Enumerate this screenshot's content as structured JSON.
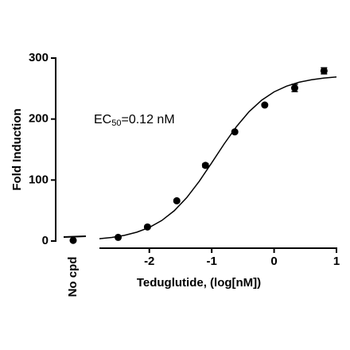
{
  "chart_data": {
    "type": "scatter",
    "ylabel": "Fold Induction",
    "xlabel": "Teduglutide, (log[nM])",
    "annotation": {
      "text": "EC",
      "subscript": "50",
      "rest": "=0.12 nM"
    },
    "ylim": [
      0,
      300
    ],
    "yticks": [
      0,
      100,
      200,
      300
    ],
    "xlim": [
      -2.8,
      1
    ],
    "xticks": [
      -2,
      -1,
      0,
      1
    ],
    "color": "#000000",
    "control": {
      "categories": [
        "No cpd"
      ],
      "values": [
        1
      ]
    },
    "points": {
      "x": [
        -2.5,
        -2.03,
        -1.56,
        -1.1,
        -0.63,
        -0.15,
        0.33,
        0.8
      ],
      "values": [
        6,
        23,
        66,
        124,
        179,
        223,
        251,
        279
      ],
      "errors": [
        1,
        2,
        2,
        3,
        2,
        2,
        6,
        5
      ]
    },
    "fit": {
      "x": [
        -2.8,
        -2.6,
        -2.4,
        -2.2,
        -2.0,
        -1.8,
        -1.6,
        -1.4,
        -1.2,
        -1.0,
        -0.8,
        -0.6,
        -0.4,
        -0.2,
        0,
        0.2,
        0.4,
        0.6,
        0.8,
        1.0
      ],
      "values": [
        3.8,
        5.9,
        9.3,
        14.5,
        22.3,
        33.7,
        49.7,
        71.2,
        97.9,
        128.2,
        159.3,
        188.0,
        212.2,
        230.9,
        244.6,
        254.0,
        260.4,
        264.5,
        267.2,
        269.0
      ]
    }
  }
}
